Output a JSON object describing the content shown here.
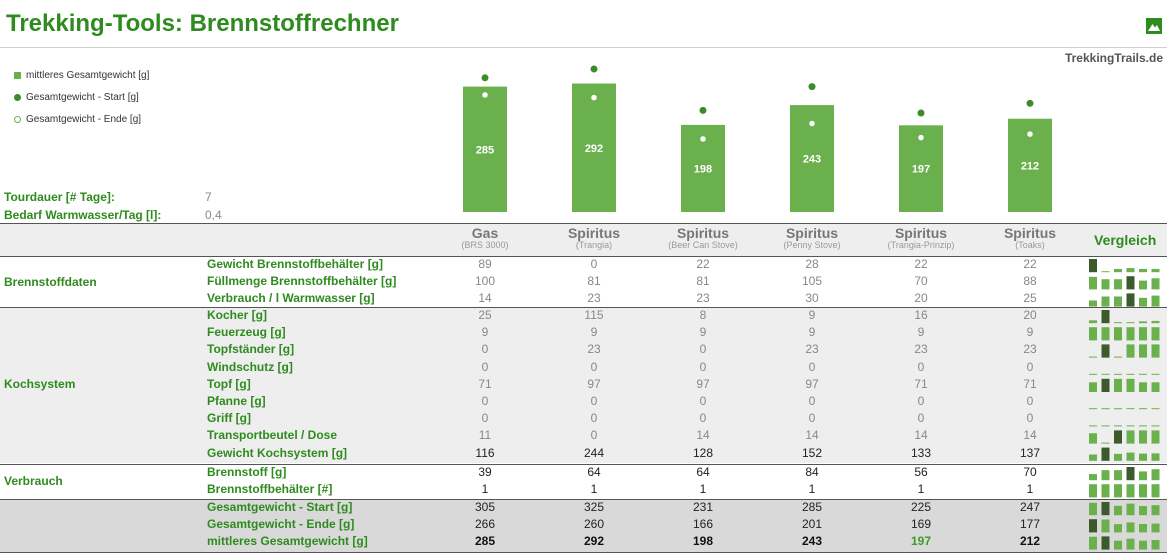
{
  "title": "Trekking-Tools: Brennstoffrechner",
  "site": "TrekkingTrails.de",
  "logo_icon": "mountain-icon",
  "colors": {
    "accent": "#2e8b1e",
    "bar": "#6ab04c",
    "dot": "#3f8a2b",
    "dark_block": "#3c5a2b",
    "band": "#eeeeee"
  },
  "legend": [
    {
      "marker": "square",
      "label": "mittleres Gesamtgewicht [g]"
    },
    {
      "marker": "dot",
      "label": "Gesamtgewicht - Start [g]"
    },
    {
      "marker": "ring",
      "label": "Gesamtgewicht - Ende [g]"
    }
  ],
  "params": [
    {
      "label": "Tourdauer [# Tage]:",
      "value": "7"
    },
    {
      "label": "Bedarf Warmwasser/Tag [l]:",
      "value": "0,4"
    }
  ],
  "chart_data": {
    "type": "bar",
    "categories": [
      "Gas",
      "Spiritus",
      "Spiritus",
      "Spiritus",
      "Spiritus",
      "Spiritus"
    ],
    "series": [
      {
        "name": "mittleres Gesamtgewicht [g]",
        "values": [
          285,
          292,
          198,
          243,
          197,
          212
        ]
      },
      {
        "name": "Gesamtgewicht - Start [g]",
        "values": [
          305,
          325,
          231,
          285,
          225,
          247
        ]
      },
      {
        "name": "Gesamtgewicht - Ende [g]",
        "values": [
          266,
          260,
          166,
          201,
          169,
          177
        ]
      }
    ],
    "ylim": [
      0,
      330
    ],
    "xlabel": "",
    "ylabel": ""
  },
  "columns": [
    {
      "name": "Gas",
      "sub": "(BRS 3000)"
    },
    {
      "name": "Spiritus",
      "sub": "(Trangia)"
    },
    {
      "name": "Spiritus",
      "sub": "(Beer Can Stove)"
    },
    {
      "name": "Spiritus",
      "sub": "(Penny Stove)"
    },
    {
      "name": "Spiritus",
      "sub": "(Trangia-Prinzip)"
    },
    {
      "name": "Spiritus",
      "sub": "(Toaks)"
    }
  ],
  "vergleich_label": "Vergleich",
  "groups": [
    {
      "label": "Brennstoffdaten",
      "rows": [
        {
          "label": "Gewicht Brennstoffbehälter [g]",
          "values": [
            "89",
            "0",
            "22",
            "28",
            "22",
            "22"
          ]
        },
        {
          "label": "Füllmenge Brennstoffbehälter [g]",
          "values": [
            "100",
            "81",
            "81",
            "105",
            "70",
            "88"
          ]
        },
        {
          "label": "Verbrauch / l Warmwasser [g]",
          "values": [
            "14",
            "23",
            "23",
            "30",
            "20",
            "25"
          ]
        }
      ]
    },
    {
      "label": "Kochsystem",
      "rows": [
        {
          "label": "Kocher [g]",
          "values": [
            "25",
            "115",
            "8",
            "9",
            "16",
            "20"
          ]
        },
        {
          "label": "Feuerzeug [g]",
          "values": [
            "9",
            "9",
            "9",
            "9",
            "9",
            "9"
          ]
        },
        {
          "label": "Topfständer [g]",
          "values": [
            "0",
            "23",
            "0",
            "23",
            "23",
            "23"
          ]
        },
        {
          "label": "Windschutz [g]",
          "values": [
            "0",
            "0",
            "0",
            "0",
            "0",
            "0"
          ]
        },
        {
          "label": "Topf [g]",
          "values": [
            "71",
            "97",
            "97",
            "97",
            "71",
            "71"
          ]
        },
        {
          "label": "Pfanne [g]",
          "values": [
            "0",
            "0",
            "0",
            "0",
            "0",
            "0"
          ]
        },
        {
          "label": "Griff [g]",
          "values": [
            "0",
            "0",
            "0",
            "0",
            "0",
            "0"
          ]
        },
        {
          "label": "Transportbeutel / Dose",
          "values": [
            "11",
            "0",
            "14",
            "14",
            "14",
            "14"
          ]
        },
        {
          "label": "Gewicht Kochsystem [g]",
          "values": [
            "116",
            "244",
            "128",
            "152",
            "133",
            "137"
          ]
        }
      ]
    },
    {
      "label": "Verbrauch",
      "rows": [
        {
          "label": "Brennstoff [g]",
          "values": [
            "39",
            "64",
            "64",
            "84",
            "56",
            "70"
          ]
        },
        {
          "label": "Brennstoffbehälter [#]",
          "values": [
            "1",
            "1",
            "1",
            "1",
            "1",
            "1"
          ]
        }
      ]
    },
    {
      "label": "",
      "rows": [
        {
          "label": "Gesamtgewicht - Start [g]",
          "values": [
            "305",
            "325",
            "231",
            "285",
            "225",
            "247"
          ]
        },
        {
          "label": "Gesamtgewicht - Ende [g]",
          "values": [
            "266",
            "260",
            "166",
            "201",
            "169",
            "177"
          ]
        },
        {
          "label": "mittleres Gesamtgewicht [g]",
          "values": [
            "285",
            "292",
            "198",
            "243",
            "197",
            "212"
          ]
        }
      ]
    }
  ]
}
